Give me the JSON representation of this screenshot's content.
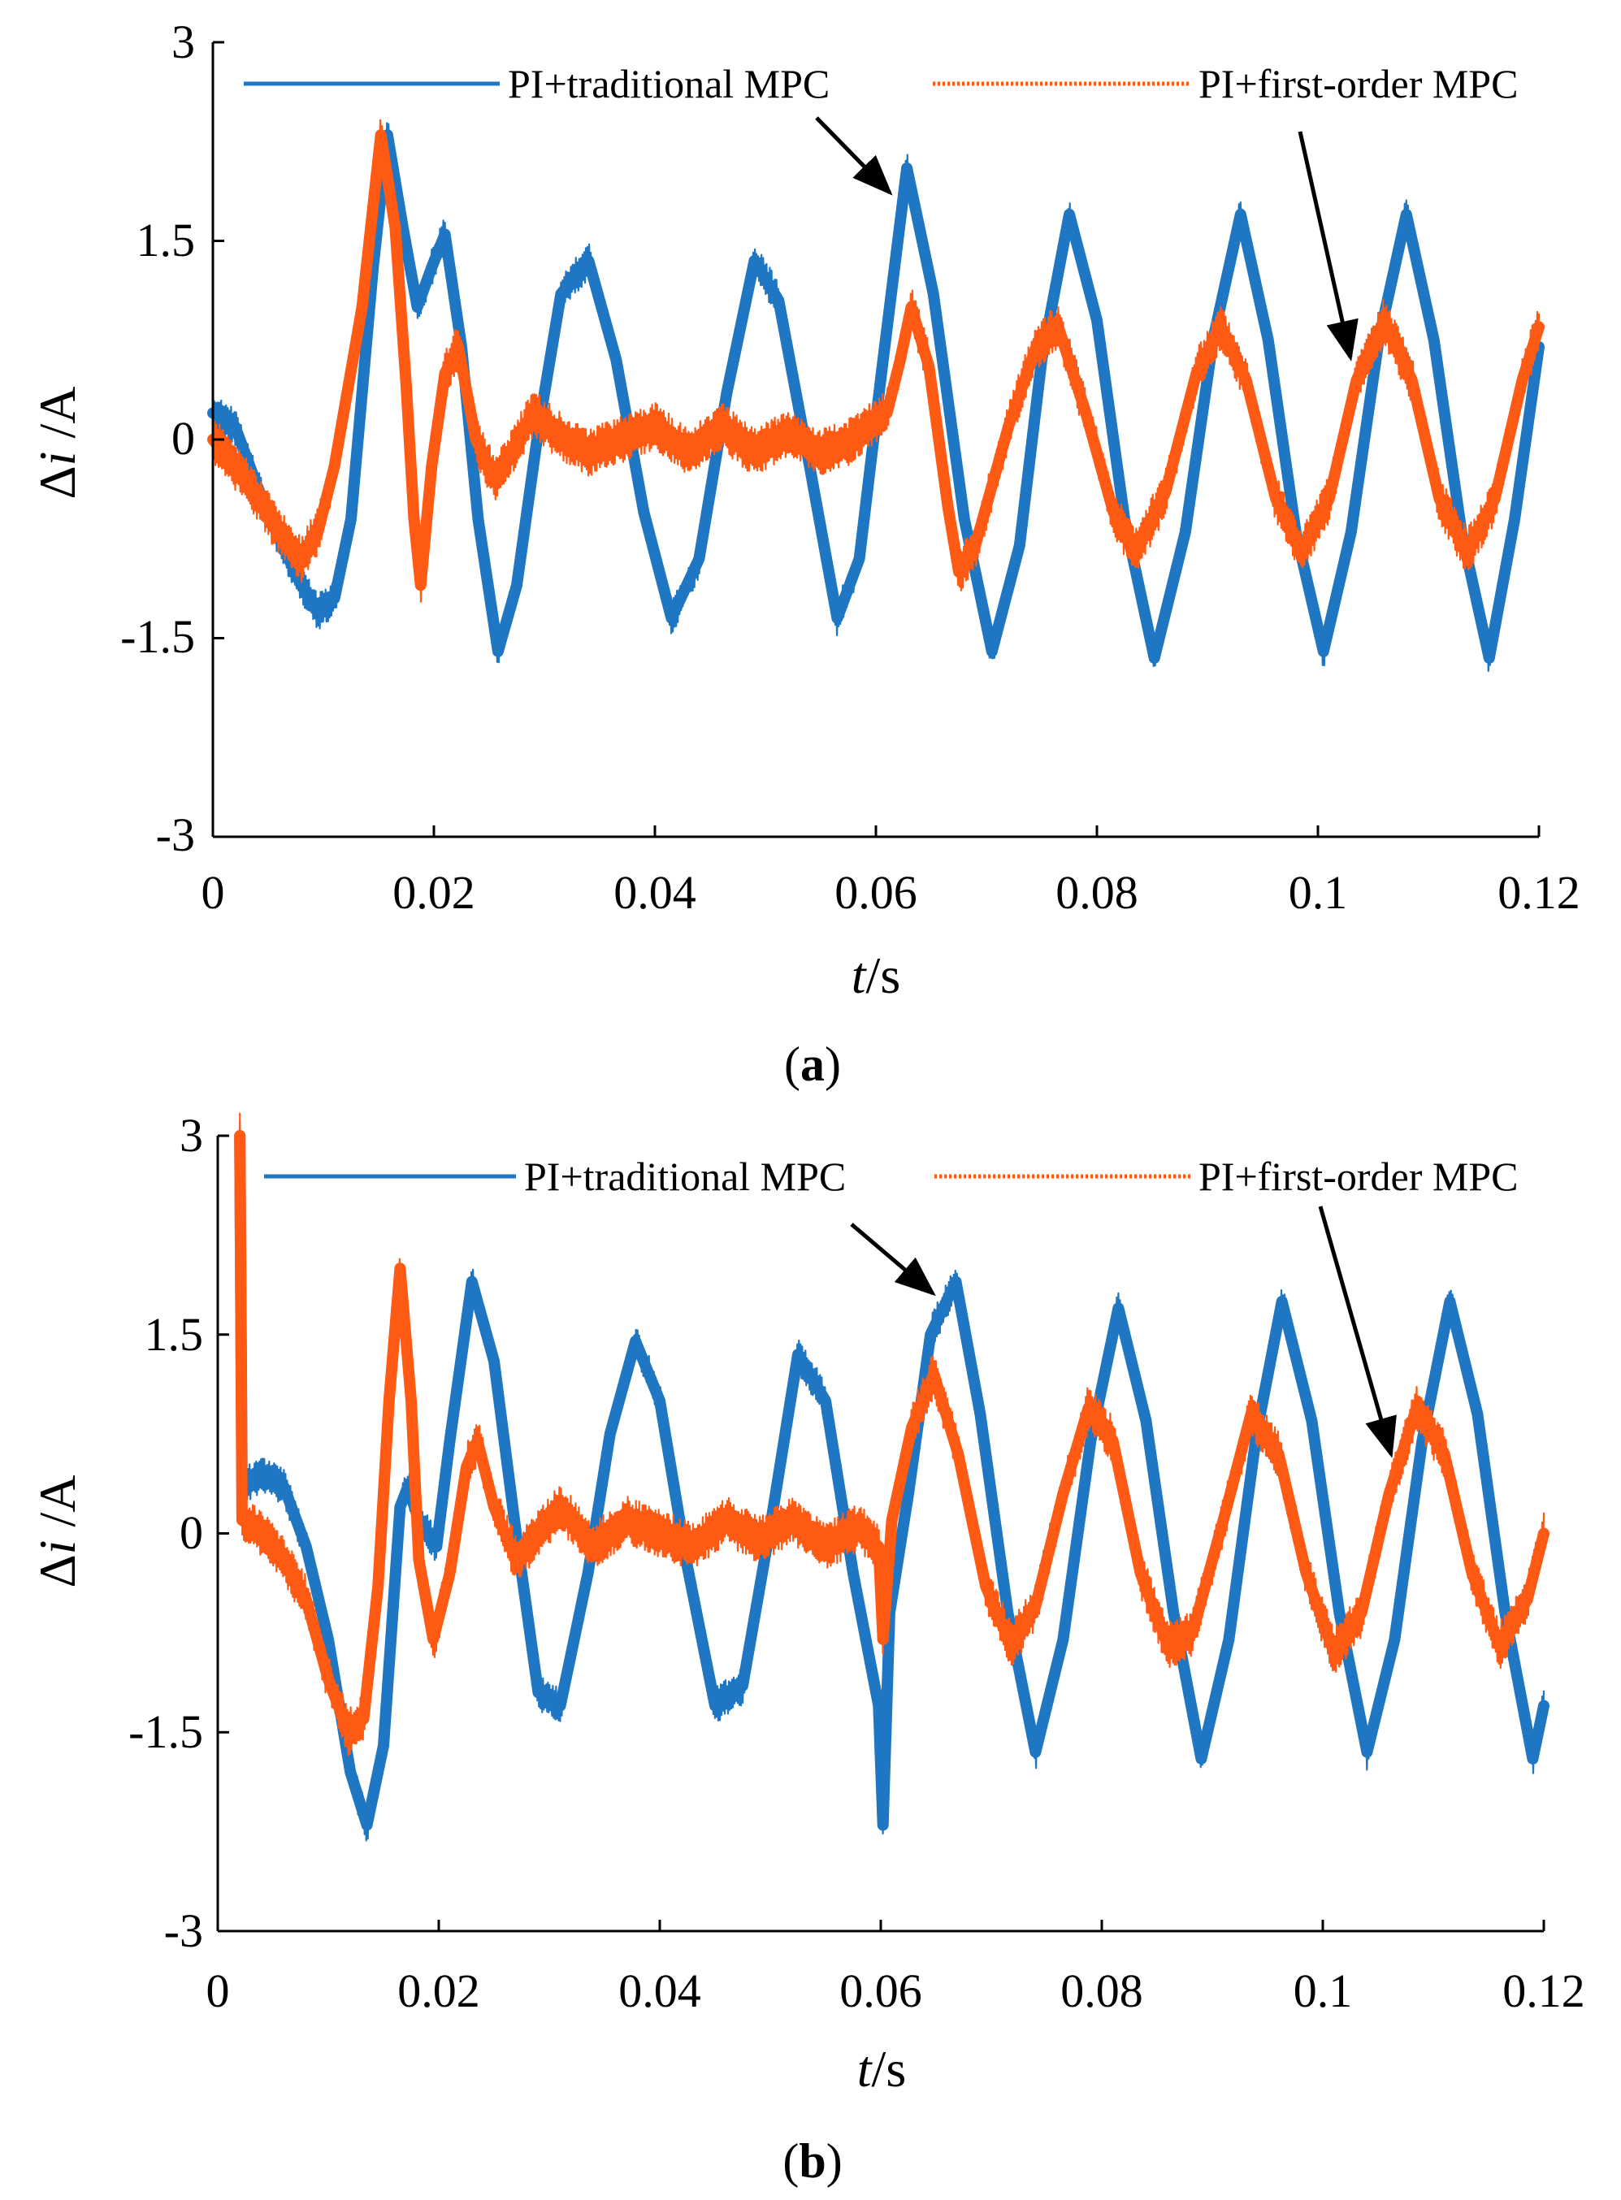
{
  "colors": {
    "traditional": "#1f77c4",
    "first_order": "#ff5a14",
    "axis": "#000000",
    "arrow": "#000000"
  },
  "chart_data": [
    {
      "type": "line",
      "panel": "a",
      "caption": {
        "open": "(",
        "letter": "a",
        "close": ")"
      },
      "xlabel": {
        "var": "t",
        "unit": "/s"
      },
      "ylabel": {
        "delta": "Δ",
        "var": "i",
        "unit": " /A"
      },
      "xlim": [
        0,
        0.12
      ],
      "ylim": [
        -3,
        3
      ],
      "xticks": [
        0,
        0.02,
        0.04,
        0.06,
        0.08,
        0.1,
        0.12
      ],
      "xtick_labels": [
        "0",
        "0.02",
        "0.04",
        "0.06",
        "0.08",
        "0.1",
        "0.12"
      ],
      "yticks": [
        3,
        1.5,
        0,
        -1.5,
        -3
      ],
      "ytick_labels": [
        "3",
        "1.5",
        "0",
        "-1.5",
        "-3"
      ],
      "series": [
        {
          "name": "PI+traditional MPC",
          "key": "traditional",
          "band": 0.14,
          "points": [
            [
              0,
              0.2
            ],
            [
              0.002,
              0.1
            ],
            [
              0.004,
              -0.35
            ],
            [
              0.006,
              -0.75
            ],
            [
              0.008,
              -1.1
            ],
            [
              0.0095,
              -1.3
            ],
            [
              0.011,
              -1.2
            ],
            [
              0.0125,
              -0.6
            ],
            [
              0.0145,
              1.3
            ],
            [
              0.0158,
              2.3
            ],
            [
              0.0172,
              1.6
            ],
            [
              0.0185,
              1.0
            ],
            [
              0.0198,
              1.3
            ],
            [
              0.021,
              1.55
            ],
            [
              0.0225,
              0.7
            ],
            [
              0.024,
              -0.6
            ],
            [
              0.0258,
              -1.6
            ],
            [
              0.0275,
              -1.1
            ],
            [
              0.0295,
              0.1
            ],
            [
              0.0315,
              1.1
            ],
            [
              0.034,
              1.35
            ],
            [
              0.0365,
              0.6
            ],
            [
              0.039,
              -0.55
            ],
            [
              0.0415,
              -1.35
            ],
            [
              0.044,
              -0.9
            ],
            [
              0.0465,
              0.35
            ],
            [
              0.049,
              1.35
            ],
            [
              0.0512,
              1.05
            ],
            [
              0.054,
              -0.2
            ],
            [
              0.0565,
              -1.35
            ],
            [
              0.0585,
              -0.9
            ],
            [
              0.0605,
              0.5
            ],
            [
              0.0628,
              2.05
            ],
            [
              0.0652,
              1.1
            ],
            [
              0.068,
              -0.6
            ],
            [
              0.0705,
              -1.6
            ],
            [
              0.073,
              -0.8
            ],
            [
              0.075,
              0.6
            ],
            [
              0.0775,
              1.7
            ],
            [
              0.08,
              0.9
            ],
            [
              0.0825,
              -0.6
            ],
            [
              0.0852,
              -1.65
            ],
            [
              0.088,
              -0.7
            ],
            [
              0.0905,
              0.75
            ],
            [
              0.093,
              1.7
            ],
            [
              0.0955,
              0.75
            ],
            [
              0.098,
              -0.7
            ],
            [
              0.1005,
              -1.6
            ],
            [
              0.103,
              -0.7
            ],
            [
              0.1055,
              0.75
            ],
            [
              0.108,
              1.7
            ],
            [
              0.1105,
              0.75
            ],
            [
              0.113,
              -0.7
            ],
            [
              0.1155,
              -1.65
            ],
            [
              0.1178,
              -0.6
            ],
            [
              0.12,
              0.7
            ]
          ]
        },
        {
          "name": "PI+first-order MPC",
          "key": "first_order",
          "band": 0.18,
          "points": [
            [
              0,
              0
            ],
            [
              0.003,
              -0.3
            ],
            [
              0.006,
              -0.7
            ],
            [
              0.008,
              -0.9
            ],
            [
              0.0095,
              -0.7
            ],
            [
              0.011,
              -0.2
            ],
            [
              0.0135,
              1.0
            ],
            [
              0.0152,
              2.3
            ],
            [
              0.0165,
              1.6
            ],
            [
              0.0175,
              0.4
            ],
            [
              0.0182,
              -0.6
            ],
            [
              0.0188,
              -1.1
            ],
            [
              0.0198,
              -0.2
            ],
            [
              0.021,
              0.5
            ],
            [
              0.0222,
              0.7
            ],
            [
              0.0238,
              0.0
            ],
            [
              0.0255,
              -0.3
            ],
            [
              0.027,
              -0.1
            ],
            [
              0.029,
              0.2
            ],
            [
              0.031,
              0.05
            ],
            [
              0.034,
              -0.1
            ],
            [
              0.037,
              0.0
            ],
            [
              0.04,
              0.1
            ],
            [
              0.043,
              -0.1
            ],
            [
              0.046,
              0.1
            ],
            [
              0.049,
              -0.1
            ],
            [
              0.052,
              0.05
            ],
            [
              0.055,
              -0.1
            ],
            [
              0.058,
              0.0
            ],
            [
              0.061,
              0.2
            ],
            [
              0.0622,
              0.6
            ],
            [
              0.0632,
              1.0
            ],
            [
              0.0648,
              0.55
            ],
            [
              0.0665,
              -0.5
            ],
            [
              0.0675,
              -1.0
            ],
            [
              0.069,
              -0.8
            ],
            [
              0.072,
              0.1
            ],
            [
              0.0745,
              0.7
            ],
            [
              0.0765,
              0.85
            ],
            [
              0.079,
              0.2
            ],
            [
              0.0815,
              -0.55
            ],
            [
              0.0835,
              -0.85
            ],
            [
              0.0862,
              -0.4
            ],
            [
              0.089,
              0.5
            ],
            [
              0.0912,
              0.85
            ],
            [
              0.0935,
              0.45
            ],
            [
              0.0962,
              -0.45
            ],
            [
              0.0985,
              -0.85
            ],
            [
              0.101,
              -0.45
            ],
            [
              0.1035,
              0.45
            ],
            [
              0.106,
              0.9
            ],
            [
              0.1085,
              0.45
            ],
            [
              0.111,
              -0.45
            ],
            [
              0.1135,
              -0.85
            ],
            [
              0.116,
              -0.45
            ],
            [
              0.1185,
              0.45
            ],
            [
              0.12,
              0.85
            ]
          ]
        }
      ]
    },
    {
      "type": "line",
      "panel": "b",
      "caption": {
        "open": "(",
        "letter": "b",
        "close": ")"
      },
      "xlabel": {
        "var": "t",
        "unit": "/s"
      },
      "ylabel": {
        "delta": "Δ",
        "var": "i",
        "unit": " /A"
      },
      "xlim": [
        0,
        0.12
      ],
      "ylim": [
        -3,
        3
      ],
      "xticks": [
        0,
        0.02,
        0.04,
        0.06,
        0.08,
        0.1,
        0.12
      ],
      "xtick_labels": [
        "0",
        "0.02",
        "0.04",
        "0.06",
        "0.08",
        "0.1",
        "0.12"
      ],
      "yticks": [
        3,
        1.5,
        0,
        -1.5,
        -3
      ],
      "ytick_labels": [
        "3",
        "1.5",
        "0",
        "-1.5",
        "-3"
      ],
      "series": [
        {
          "name": "PI+traditional MPC",
          "key": "traditional",
          "band": 0.14,
          "points": [
            [
              0.002,
              3.0
            ],
            [
              0.0022,
              0.35
            ],
            [
              0.004,
              0.45
            ],
            [
              0.006,
              0.35
            ],
            [
              0.008,
              -0.1
            ],
            [
              0.01,
              -0.8
            ],
            [
              0.012,
              -1.8
            ],
            [
              0.0135,
              -2.2
            ],
            [
              0.015,
              -1.6
            ],
            [
              0.0165,
              0.2
            ],
            [
              0.0172,
              0.35
            ],
            [
              0.0182,
              0.1
            ],
            [
              0.0198,
              -0.1
            ],
            [
              0.021,
              0.7
            ],
            [
              0.023,
              1.9
            ],
            [
              0.025,
              1.3
            ],
            [
              0.027,
              0.0
            ],
            [
              0.029,
              -1.2
            ],
            [
              0.031,
              -1.3
            ],
            [
              0.0335,
              -0.3
            ],
            [
              0.0355,
              0.75
            ],
            [
              0.0378,
              1.45
            ],
            [
              0.04,
              1.0
            ],
            [
              0.0425,
              -0.25
            ],
            [
              0.045,
              -1.3
            ],
            [
              0.0475,
              -1.15
            ],
            [
              0.05,
              0.05
            ],
            [
              0.0525,
              1.35
            ],
            [
              0.055,
              1.0
            ],
            [
              0.0575,
              -0.3
            ],
            [
              0.0598,
              -1.3
            ],
            [
              0.0602,
              -2.2
            ],
            [
              0.0608,
              -0.6
            ],
            [
              0.0625,
              0.3
            ],
            [
              0.0645,
              1.5
            ],
            [
              0.0668,
              1.9
            ],
            [
              0.069,
              0.9
            ],
            [
              0.0715,
              -0.6
            ],
            [
              0.074,
              -1.65
            ],
            [
              0.0765,
              -0.8
            ],
            [
              0.079,
              0.7
            ],
            [
              0.0815,
              1.7
            ],
            [
              0.084,
              0.85
            ],
            [
              0.0865,
              -0.6
            ],
            [
              0.089,
              -1.7
            ],
            [
              0.0915,
              -0.8
            ],
            [
              0.094,
              0.75
            ],
            [
              0.0963,
              1.75
            ],
            [
              0.099,
              0.85
            ],
            [
              0.1015,
              -0.6
            ],
            [
              0.104,
              -1.65
            ],
            [
              0.1065,
              -0.8
            ],
            [
              0.109,
              0.7
            ],
            [
              0.1115,
              1.75
            ],
            [
              0.114,
              0.9
            ],
            [
              0.1165,
              -0.6
            ],
            [
              0.119,
              -1.7
            ],
            [
              0.12,
              -1.3
            ]
          ]
        },
        {
          "name": "PI+first-order MPC",
          "key": "first_order",
          "band": 0.18,
          "points": [
            [
              0.002,
              3.0
            ],
            [
              0.0022,
              0.1
            ],
            [
              0.004,
              0.0
            ],
            [
              0.006,
              -0.2
            ],
            [
              0.008,
              -0.5
            ],
            [
              0.01,
              -1.1
            ],
            [
              0.0118,
              -1.5
            ],
            [
              0.0132,
              -1.4
            ],
            [
              0.0145,
              -0.4
            ],
            [
              0.0155,
              1.0
            ],
            [
              0.0165,
              2.0
            ],
            [
              0.0175,
              1.0
            ],
            [
              0.0182,
              -0.2
            ],
            [
              0.0195,
              -0.8
            ],
            [
              0.021,
              -0.3
            ],
            [
              0.0225,
              0.5
            ],
            [
              0.0235,
              0.7
            ],
            [
              0.025,
              0.2
            ],
            [
              0.027,
              -0.2
            ],
            [
              0.029,
              0.0
            ],
            [
              0.031,
              0.2
            ],
            [
              0.034,
              -0.1
            ],
            [
              0.037,
              0.1
            ],
            [
              0.04,
              0.0
            ],
            [
              0.043,
              -0.1
            ],
            [
              0.046,
              0.1
            ],
            [
              0.049,
              -0.05
            ],
            [
              0.052,
              0.1
            ],
            [
              0.055,
              -0.1
            ],
            [
              0.058,
              0.05
            ],
            [
              0.0598,
              -0.1
            ],
            [
              0.0602,
              -0.8
            ],
            [
              0.061,
              0.1
            ],
            [
              0.0628,
              0.8
            ],
            [
              0.0648,
              1.2
            ],
            [
              0.067,
              0.6
            ],
            [
              0.0695,
              -0.4
            ],
            [
              0.0718,
              -0.85
            ],
            [
              0.074,
              -0.55
            ],
            [
              0.0765,
              0.3
            ],
            [
              0.0788,
              0.95
            ],
            [
              0.081,
              0.7
            ],
            [
              0.0835,
              -0.3
            ],
            [
              0.086,
              -0.85
            ],
            [
              0.0882,
              -0.75
            ],
            [
              0.091,
              0.1
            ],
            [
              0.0935,
              0.9
            ],
            [
              0.096,
              0.6
            ],
            [
              0.0985,
              -0.3
            ],
            [
              0.101,
              -0.9
            ],
            [
              0.1035,
              -0.6
            ],
            [
              0.106,
              0.3
            ],
            [
              0.1085,
              0.95
            ],
            [
              0.111,
              0.6
            ],
            [
              0.1135,
              -0.3
            ],
            [
              0.116,
              -0.85
            ],
            [
              0.1185,
              -0.5
            ],
            [
              0.12,
              0.0
            ]
          ]
        }
      ]
    }
  ]
}
